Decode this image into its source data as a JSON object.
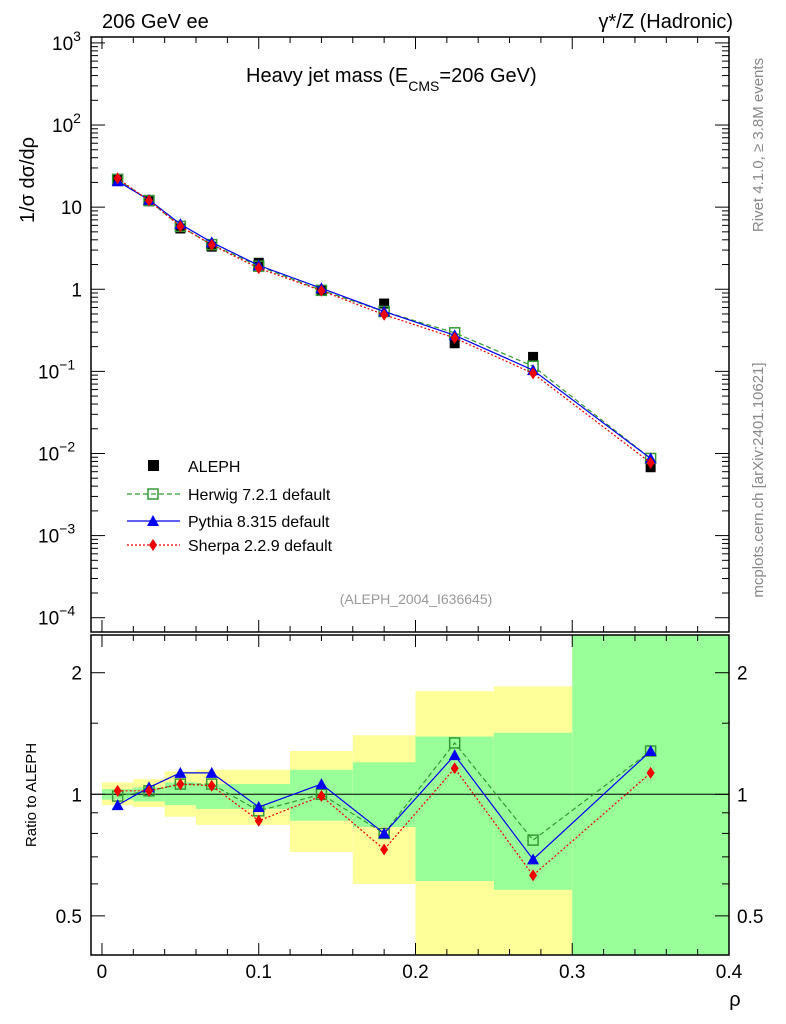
{
  "header": {
    "left": "206 GeV ee",
    "right": "γ*/Z (Hadronic)"
  },
  "side_labels": {
    "rivet": "Rivet 4.1.0, ≥ 3.8M events",
    "mcplots": "mcplots.cern.ch [arXiv:2401.10621]"
  },
  "chart_data": {
    "type": "line",
    "title_main": "Heavy jet mass (E",
    "title_sub": "CMS",
    "title_end": "=206 GeV)",
    "analysis": "(ALEPH_2004_I636645)",
    "xlabel": "ρ",
    "ylabel": "1/σ  dσ/dρ",
    "ratio_ylabel": "Ratio to ALEPH",
    "xlim": [
      -0.007,
      0.4
    ],
    "ylim": [
      6.7e-05,
      1180
    ],
    "ratio_ylim": [
      0.4,
      2.48
    ],
    "x_ticks": [
      "0",
      "0.1",
      "0.2",
      "0.3",
      "0.4"
    ],
    "x_tick_values": [
      0,
      0.1,
      0.2,
      0.3,
      0.4
    ],
    "y_ticks": [
      {
        "v": 1000,
        "b": "10",
        "e": "3"
      },
      {
        "v": 100,
        "b": "10",
        "e": "2"
      },
      {
        "v": 10,
        "b": "10",
        "e": ""
      },
      {
        "v": 1,
        "b": "1",
        "e": ""
      },
      {
        "v": 0.1,
        "b": "10",
        "e": "−1"
      },
      {
        "v": 0.01,
        "b": "10",
        "e": "−2"
      },
      {
        "v": 0.001,
        "b": "10",
        "e": "−3"
      },
      {
        "v": 0.0001,
        "b": "10",
        "e": "−4"
      }
    ],
    "ratio_ticks": [
      {
        "v": 2,
        "l": "2"
      },
      {
        "v": 1,
        "l": "1"
      },
      {
        "v": 0.5,
        "l": "0.5"
      }
    ],
    "bin_edges": [
      0,
      0.02,
      0.04,
      0.06,
      0.08,
      0.12,
      0.16,
      0.2,
      0.25,
      0.3,
      0.4
    ],
    "x": [
      0.01,
      0.03,
      0.05,
      0.07,
      0.1,
      0.14,
      0.18,
      0.225,
      0.275,
      0.35
    ],
    "data": {
      "name": "ALEPH",
      "values": [
        22,
        11.8,
        5.5,
        3.3,
        2.1,
        0.97,
        0.67,
        0.22,
        0.15,
        0.0068
      ]
    },
    "band_total": {
      "up": [
        1.07,
        1.09,
        1.14,
        1.15,
        1.15,
        1.28,
        1.4,
        1.8,
        1.85,
        2.48
      ],
      "down": [
        0.94,
        0.93,
        0.88,
        0.84,
        0.84,
        0.72,
        0.6,
        0.4,
        0.4,
        0.4
      ]
    },
    "band_stat": {
      "up": [
        1.03,
        1.04,
        1.07,
        1.06,
        1.06,
        1.15,
        1.2,
        1.39,
        1.42,
        2.48
      ],
      "down": [
        0.97,
        0.96,
        0.94,
        0.92,
        0.92,
        0.86,
        0.83,
        0.61,
        0.58,
        0.4
      ]
    },
    "series": [
      {
        "name": "Herwig 7.2.1 default",
        "color": "#339933",
        "ratio": [
          0.99,
          1.02,
          1.06,
          1.06,
          0.91,
          1.0,
          0.8,
          1.34,
          0.77,
          1.28
        ]
      },
      {
        "name": "Pythia 8.315 default",
        "color": "#0000ee",
        "ratio": [
          0.94,
          1.04,
          1.13,
          1.13,
          0.93,
          1.06,
          0.8,
          1.25,
          0.69,
          1.28
        ]
      },
      {
        "name": "Sherpa 2.2.9 default",
        "color": "#ee0000",
        "ratio": [
          1.02,
          1.02,
          1.06,
          1.05,
          0.86,
          0.99,
          0.73,
          1.16,
          0.63,
          1.13
        ]
      }
    ]
  }
}
